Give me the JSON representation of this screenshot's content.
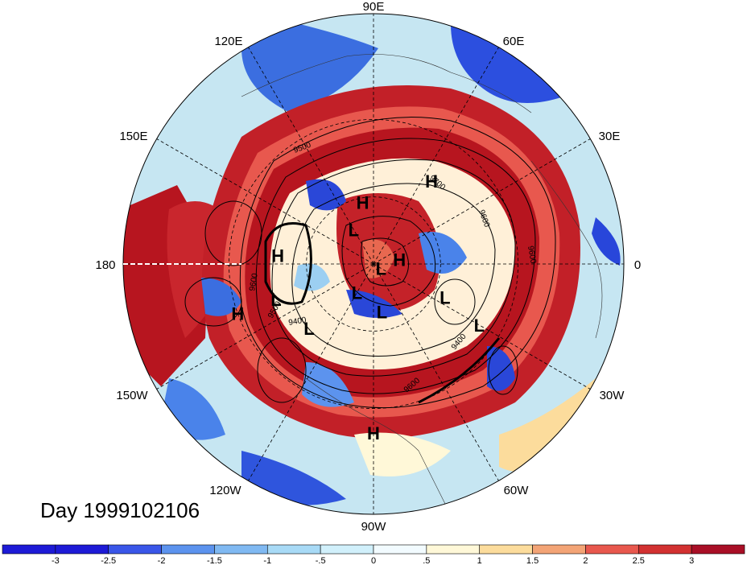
{
  "day_label": "Day 1999102106",
  "longitude_labels": {
    "deg90E": "90E",
    "deg60E": "60E",
    "deg30E": "30E",
    "deg0": "0",
    "deg30W": "30W",
    "deg60W": "60W",
    "deg90W": "90W",
    "deg120W": "120W",
    "deg150W": "150W",
    "deg180": "180",
    "deg150E": "150E",
    "deg120E": "120E"
  },
  "pressure_centers": [
    {
      "type": "H",
      "lon": 100,
      "lat": 62
    },
    {
      "type": "H",
      "lon": 55,
      "lat": 46
    },
    {
      "type": "H",
      "lon": 175,
      "lat": 48
    },
    {
      "type": "H",
      "lon": -160,
      "lat": 30
    },
    {
      "type": "H",
      "lon": -90,
      "lat": 22
    },
    {
      "type": "H",
      "lon": 10,
      "lat": 78
    },
    {
      "type": "L",
      "lon": 120,
      "lat": 72
    },
    {
      "type": "L",
      "lon": -30,
      "lat": 86
    },
    {
      "type": "L",
      "lon": -120,
      "lat": 75
    },
    {
      "type": "L",
      "lon": -80,
      "lat": 68
    },
    {
      "type": "L",
      "lon": -25,
      "lat": 55
    },
    {
      "type": "L",
      "lon": -160,
      "lat": 45
    },
    {
      "type": "L",
      "lon": -135,
      "lat": 50
    },
    {
      "type": "L",
      "lon": -30,
      "lat": 38
    }
  ],
  "contour_labels": [
    "9500",
    "9600",
    "9700",
    "9400",
    "9600",
    "9500",
    "9600",
    "9400",
    "9600"
  ],
  "colorbar": {
    "ticks": [
      "-3",
      "-2.5",
      "-2",
      "-1.5",
      "-1",
      "-.5",
      "0",
      ".5",
      "1",
      "1.5",
      "2",
      "2.5",
      "3"
    ],
    "colors": [
      "#1d1ad6",
      "#3a56e8",
      "#5c93ee",
      "#80b9f2",
      "#a8daf6",
      "#d1f0fb",
      "#f2fbff",
      "#fff8d8",
      "#fcdc9c",
      "#f3a476",
      "#e8584e",
      "#d23131",
      "#a90f26"
    ]
  }
}
